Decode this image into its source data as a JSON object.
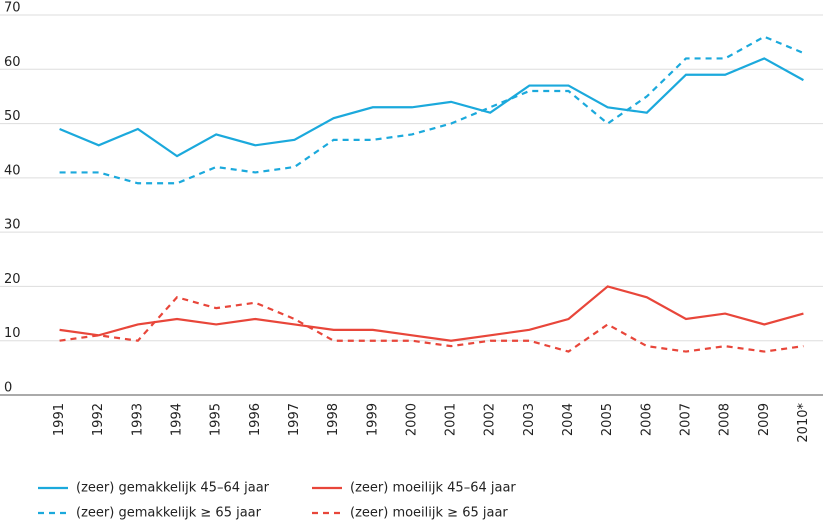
{
  "chart_data": {
    "type": "line",
    "categories": [
      "1991",
      "1992",
      "1993",
      "1994",
      "1995",
      "1996",
      "1997",
      "1998",
      "1999",
      "2000",
      "2001",
      "2002",
      "2003",
      "2004",
      "2005",
      "2006",
      "2007",
      "2008",
      "2009",
      "2010*"
    ],
    "series": [
      {
        "name": "(zeer) gemakkelijk 45–64 jaar",
        "color": "#1ba9dc",
        "dashed": false,
        "values": [
          49,
          46,
          49,
          44,
          48,
          46,
          47,
          51,
          53,
          53,
          54,
          52,
          57,
          57,
          53,
          52,
          59,
          59,
          62,
          58
        ]
      },
      {
        "name": "(zeer) gemakkelijk ≥ 65 jaar",
        "color": "#1ba9dc",
        "dashed": true,
        "values": [
          41,
          41,
          39,
          39,
          42,
          41,
          42,
          47,
          47,
          48,
          50,
          53,
          56,
          56,
          50,
          55,
          62,
          62,
          66,
          63
        ]
      },
      {
        "name": "(zeer) moeilijk 45–64 jaar",
        "color": "#e8463a",
        "dashed": false,
        "values": [
          12,
          11,
          13,
          14,
          13,
          14,
          13,
          12,
          12,
          11,
          10,
          11,
          12,
          14,
          20,
          18,
          14,
          15,
          13,
          15
        ]
      },
      {
        "name": "(zeer) moeilijk ≥ 65 jaar",
        "color": "#e8463a",
        "dashed": true,
        "values": [
          10,
          11,
          10,
          18,
          16,
          17,
          14,
          10,
          10,
          10,
          9,
          10,
          10,
          8,
          13,
          9,
          8,
          9,
          8,
          9
        ]
      }
    ],
    "ylim": [
      0,
      70
    ],
    "yticks": [
      0,
      10,
      20,
      30,
      40,
      50,
      60,
      70
    ],
    "grid": true
  }
}
